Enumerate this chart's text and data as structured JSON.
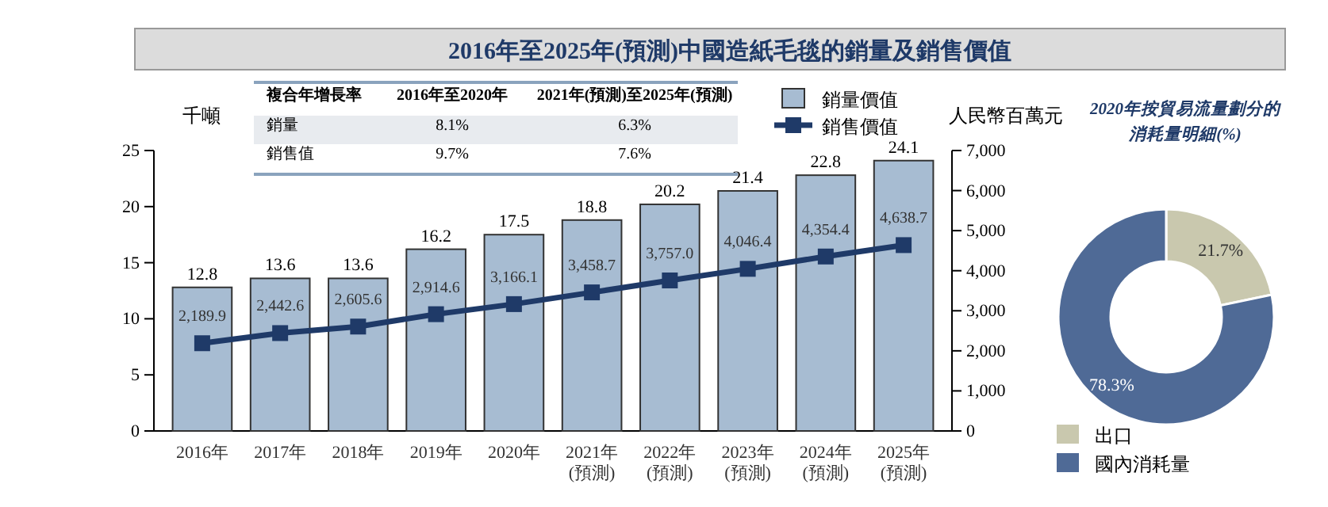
{
  "chart_data": [
    {
      "type": "bar",
      "title": "2016年至2025年(預測)中國造紙毛毯的銷量及銷售價值",
      "ylabel": "千噸",
      "y2label": "人民幣百萬元",
      "categories": [
        "2016年",
        "2017年",
        "2018年",
        "2019年",
        "2020年",
        "2021年(預測)",
        "2022年(預測)",
        "2023年(預測)",
        "2024年(預測)",
        "2025年(預測)"
      ],
      "series": [
        {
          "name": "銷量價值",
          "type": "bar",
          "color": "#a7bcd2",
          "values": [
            12.8,
            13.6,
            13.6,
            16.2,
            17.5,
            18.8,
            20.2,
            21.4,
            22.8,
            24.1
          ],
          "value_labels": [
            "12.8",
            "13.6",
            "13.6",
            "16.2",
            "17.5",
            "18.8",
            "20.2",
            "21.4",
            "22.8",
            "24.1"
          ]
        },
        {
          "name": "銷售價值",
          "type": "line",
          "axis": "y2",
          "color": "#1f3a68",
          "marker": "square",
          "values": [
            2189.9,
            2442.6,
            2605.6,
            2914.6,
            3166.1,
            3458.7,
            3757.0,
            4046.4,
            4354.4,
            4638.7
          ],
          "value_labels": [
            "2,189.9",
            "2,442.6",
            "2,605.6",
            "2,914.6",
            "3,166.1",
            "3,458.7",
            "3,757.0",
            "4,046.4",
            "4,354.4",
            "4,638.7"
          ]
        }
      ],
      "ylim": [
        0,
        25
      ],
      "yticks": [
        0,
        5,
        10,
        15,
        20,
        25
      ],
      "y2lim": [
        0,
        7000
      ],
      "y2ticks": [
        0,
        {
          "value": 1000,
          "label": "1,000"
        },
        {
          "value": 2000,
          "label": "2,000"
        },
        {
          "value": 3000,
          "label": "3,000"
        },
        {
          "value": 4000,
          "label": "4,000"
        },
        {
          "value": 5000,
          "label": "5,000"
        },
        {
          "value": 6000,
          "label": "6,000"
        },
        {
          "value": 7000,
          "label": "7,000"
        }
      ],
      "legend": "top right",
      "grid": false,
      "annotations": [
        "複合年增長率",
        "2016年至2020年",
        "2021年(預測)至2025年(預測)",
        "銷量",
        "8.1%",
        "6.3%",
        "銷售值",
        "9.7%",
        "7.6%"
      ]
    },
    {
      "type": "donut",
      "title": "2020年按貿易流量劃分的消耗量明細(%)",
      "categories": [
        "出口",
        "國內消耗量"
      ],
      "values": [
        21.7,
        78.3
      ],
      "colors": [
        "#c9c8ae",
        "#4f6a96"
      ],
      "value_labels": [
        "21.7%",
        "78.3%"
      ],
      "legend": "bottom"
    }
  ]
}
